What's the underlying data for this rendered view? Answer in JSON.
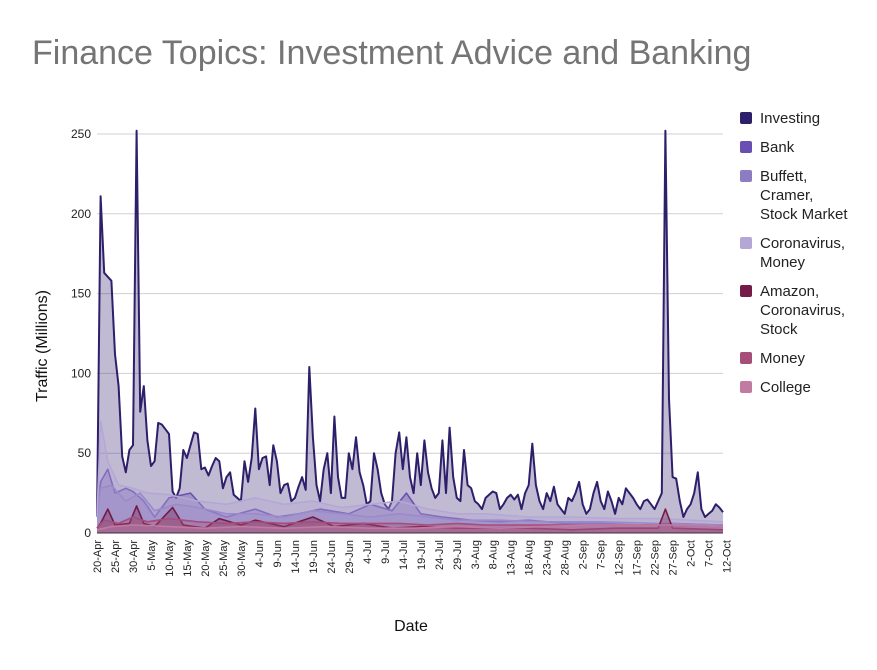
{
  "chart_data": {
    "type": "area",
    "title": "Finance Topics: Investment Advice and Banking",
    "xlabel": "Date",
    "ylabel": "Traffic (Millions)",
    "ylim": [
      0,
      265
    ],
    "yticks": [
      0,
      50,
      100,
      150,
      200,
      250
    ],
    "grid": "horizontal",
    "legend_position": "right",
    "x_tick_labels": [
      "20-Apr",
      "25-Apr",
      "30-Apr",
      "5-May",
      "10-May",
      "15-May",
      "20-May",
      "25-May",
      "30-May",
      "4-Jun",
      "9-Jun",
      "14-Jun",
      "19-Jun",
      "24-Jun",
      "29-Jun",
      "4-Jul",
      "9-Jul",
      "14-Jul",
      "19-Jul",
      "24-Jul",
      "29-Jul",
      "3-Aug",
      "8-Aug",
      "13-Aug",
      "18-Aug",
      "23-Aug",
      "28-Aug",
      "2-Sep",
      "7-Sep",
      "12-Sep",
      "17-Sep",
      "22-Sep",
      "27-Sep",
      "2-Oct",
      "7-Oct",
      "12-Oct"
    ],
    "series": [
      {
        "name": "Investing",
        "color": "#2e1f6b",
        "keypoints": [
          [
            0,
            10
          ],
          [
            1,
            211
          ],
          [
            2,
            163
          ],
          [
            4,
            158
          ],
          [
            5,
            112
          ],
          [
            6,
            92
          ],
          [
            7,
            48
          ],
          [
            8,
            38
          ],
          [
            9,
            52
          ],
          [
            10,
            55
          ],
          [
            11,
            252
          ],
          [
            12,
            76
          ],
          [
            13,
            92
          ],
          [
            14,
            58
          ],
          [
            15,
            42
          ],
          [
            16,
            45
          ],
          [
            17,
            69
          ],
          [
            18,
            68
          ],
          [
            19,
            65
          ],
          [
            20,
            62
          ],
          [
            21,
            26
          ],
          [
            22,
            22
          ],
          [
            23,
            28
          ],
          [
            24,
            52
          ],
          [
            25,
            47
          ],
          [
            26,
            55
          ],
          [
            27,
            63
          ],
          [
            28,
            62
          ],
          [
            29,
            40
          ],
          [
            30,
            41
          ],
          [
            31,
            36
          ],
          [
            32,
            42
          ],
          [
            33,
            47
          ],
          [
            34,
            45
          ],
          [
            35,
            28
          ],
          [
            36,
            35
          ],
          [
            37,
            38
          ],
          [
            38,
            24
          ],
          [
            39,
            22
          ],
          [
            40,
            20
          ],
          [
            41,
            45
          ],
          [
            42,
            32
          ],
          [
            43,
            47
          ],
          [
            44,
            78
          ],
          [
            45,
            40
          ],
          [
            46,
            47
          ],
          [
            47,
            48
          ],
          [
            48,
            30
          ],
          [
            49,
            55
          ],
          [
            50,
            45
          ],
          [
            51,
            25
          ],
          [
            52,
            30
          ],
          [
            53,
            31
          ],
          [
            54,
            20
          ],
          [
            55,
            22
          ],
          [
            56,
            29
          ],
          [
            57,
            35
          ],
          [
            58,
            27
          ],
          [
            59,
            104
          ],
          [
            60,
            60
          ],
          [
            61,
            30
          ],
          [
            62,
            20
          ],
          [
            63,
            40
          ],
          [
            64,
            50
          ],
          [
            65,
            25
          ],
          [
            66,
            73
          ],
          [
            67,
            35
          ],
          [
            68,
            22
          ],
          [
            69,
            22
          ],
          [
            70,
            50
          ],
          [
            71,
            40
          ],
          [
            72,
            60
          ],
          [
            73,
            38
          ],
          [
            74,
            30
          ],
          [
            75,
            18
          ],
          [
            76,
            20
          ],
          [
            77,
            50
          ],
          [
            78,
            40
          ],
          [
            79,
            25
          ],
          [
            80,
            18
          ],
          [
            81,
            15
          ],
          [
            82,
            20
          ],
          [
            83,
            50
          ],
          [
            84,
            63
          ],
          [
            85,
            40
          ],
          [
            86,
            60
          ],
          [
            87,
            35
          ],
          [
            88,
            25
          ],
          [
            89,
            50
          ],
          [
            90,
            30
          ],
          [
            91,
            58
          ],
          [
            92,
            38
          ],
          [
            93,
            28
          ],
          [
            94,
            22
          ],
          [
            95,
            25
          ],
          [
            96,
            58
          ],
          [
            97,
            25
          ],
          [
            98,
            66
          ],
          [
            99,
            35
          ],
          [
            100,
            22
          ],
          [
            101,
            20
          ],
          [
            102,
            52
          ],
          [
            103,
            30
          ],
          [
            104,
            28
          ],
          [
            105,
            20
          ],
          [
            106,
            18
          ],
          [
            107,
            15
          ],
          [
            108,
            22
          ],
          [
            109,
            24
          ],
          [
            110,
            26
          ],
          [
            111,
            25
          ],
          [
            112,
            15
          ],
          [
            113,
            18
          ],
          [
            114,
            22
          ],
          [
            115,
            24
          ],
          [
            116,
            21
          ],
          [
            117,
            24
          ],
          [
            118,
            15
          ],
          [
            119,
            25
          ],
          [
            120,
            30
          ],
          [
            121,
            56
          ],
          [
            122,
            30
          ],
          [
            123,
            20
          ],
          [
            124,
            15
          ],
          [
            125,
            25
          ],
          [
            126,
            20
          ],
          [
            127,
            29
          ],
          [
            128,
            18
          ],
          [
            129,
            15
          ],
          [
            130,
            12
          ],
          [
            131,
            22
          ],
          [
            132,
            20
          ],
          [
            133,
            25
          ],
          [
            134,
            32
          ],
          [
            135,
            18
          ],
          [
            136,
            12
          ],
          [
            137,
            15
          ],
          [
            138,
            25
          ],
          [
            139,
            32
          ],
          [
            140,
            20
          ],
          [
            141,
            15
          ],
          [
            142,
            26
          ],
          [
            143,
            20
          ],
          [
            144,
            12
          ],
          [
            145,
            22
          ],
          [
            146,
            18
          ],
          [
            147,
            28
          ],
          [
            148,
            25
          ],
          [
            149,
            22
          ],
          [
            150,
            18
          ],
          [
            151,
            15
          ],
          [
            152,
            20
          ],
          [
            153,
            21
          ],
          [
            154,
            18
          ],
          [
            155,
            15
          ],
          [
            156,
            20
          ],
          [
            157,
            25
          ],
          [
            158,
            252
          ],
          [
            159,
            84
          ],
          [
            160,
            35
          ],
          [
            161,
            34
          ],
          [
            162,
            20
          ],
          [
            163,
            10
          ],
          [
            164,
            15
          ],
          [
            165,
            18
          ],
          [
            166,
            25
          ],
          [
            167,
            38
          ],
          [
            168,
            15
          ],
          [
            169,
            10
          ],
          [
            170,
            12
          ],
          [
            171,
            14
          ],
          [
            172,
            18
          ],
          [
            173,
            16
          ],
          [
            174,
            13
          ]
        ]
      },
      {
        "name": "Bank",
        "color": "#6a4fb3",
        "keypoints": [
          [
            0,
            10
          ],
          [
            1,
            32
          ],
          [
            3,
            40
          ],
          [
            5,
            25
          ],
          [
            8,
            28
          ],
          [
            10,
            26
          ],
          [
            13,
            20
          ],
          [
            16,
            10
          ],
          [
            20,
            22
          ],
          [
            26,
            25
          ],
          [
            30,
            15
          ],
          [
            36,
            10
          ],
          [
            44,
            15
          ],
          [
            50,
            10
          ],
          [
            56,
            12
          ],
          [
            62,
            15
          ],
          [
            70,
            12
          ],
          [
            76,
            18
          ],
          [
            82,
            14
          ],
          [
            86,
            25
          ],
          [
            90,
            12
          ],
          [
            96,
            10
          ],
          [
            104,
            8
          ],
          [
            112,
            7
          ],
          [
            120,
            8
          ],
          [
            130,
            6
          ],
          [
            140,
            6
          ],
          [
            150,
            5
          ],
          [
            160,
            6
          ],
          [
            174,
            5
          ]
        ]
      },
      {
        "name": "Buffett, Cramer, Stock Market",
        "color": "#8e7cc3",
        "keypoints": [
          [
            0,
            10
          ],
          [
            1,
            28
          ],
          [
            4,
            30
          ],
          [
            8,
            20
          ],
          [
            12,
            25
          ],
          [
            16,
            14
          ],
          [
            22,
            18
          ],
          [
            28,
            16
          ],
          [
            36,
            12
          ],
          [
            44,
            12
          ],
          [
            52,
            10
          ],
          [
            60,
            14
          ],
          [
            68,
            12
          ],
          [
            76,
            10
          ],
          [
            84,
            12
          ],
          [
            92,
            10
          ],
          [
            100,
            8
          ],
          [
            112,
            8
          ],
          [
            124,
            7
          ],
          [
            140,
            7
          ],
          [
            156,
            6
          ],
          [
            174,
            5
          ]
        ]
      },
      {
        "name": "Coronavirus, Money",
        "color": "#b4a7d6",
        "keypoints": [
          [
            0,
            10
          ],
          [
            1,
            70
          ],
          [
            3,
            45
          ],
          [
            6,
            30
          ],
          [
            10,
            28
          ],
          [
            14,
            25
          ],
          [
            20,
            24
          ],
          [
            28,
            20
          ],
          [
            36,
            18
          ],
          [
            44,
            22
          ],
          [
            52,
            18
          ],
          [
            60,
            20
          ],
          [
            68,
            16
          ],
          [
            76,
            18
          ],
          [
            84,
            20
          ],
          [
            92,
            15
          ],
          [
            100,
            12
          ],
          [
            108,
            12
          ],
          [
            120,
            10
          ],
          [
            132,
            10
          ],
          [
            144,
            9
          ],
          [
            156,
            9
          ],
          [
            174,
            7
          ]
        ]
      },
      {
        "name": "Amazon, Coronavirus, Stock",
        "color": "#741b47",
        "keypoints": [
          [
            0,
            3
          ],
          [
            1,
            6
          ],
          [
            3,
            15
          ],
          [
            5,
            5
          ],
          [
            9,
            6
          ],
          [
            11,
            17
          ],
          [
            13,
            6
          ],
          [
            16,
            4
          ],
          [
            21,
            16
          ],
          [
            24,
            5
          ],
          [
            30,
            3
          ],
          [
            34,
            9
          ],
          [
            40,
            5
          ],
          [
            44,
            8
          ],
          [
            52,
            4
          ],
          [
            60,
            10
          ],
          [
            66,
            4
          ],
          [
            74,
            6
          ],
          [
            82,
            3
          ],
          [
            90,
            4
          ],
          [
            100,
            3
          ],
          [
            112,
            3
          ],
          [
            120,
            3
          ],
          [
            132,
            2
          ],
          [
            144,
            3
          ],
          [
            156,
            3
          ],
          [
            158,
            15
          ],
          [
            160,
            3
          ],
          [
            174,
            2
          ]
        ]
      },
      {
        "name": "Money",
        "color": "#a64d79",
        "keypoints": [
          [
            0,
            3
          ],
          [
            2,
            8
          ],
          [
            6,
            6
          ],
          [
            10,
            10
          ],
          [
            14,
            7
          ],
          [
            20,
            9
          ],
          [
            28,
            7
          ],
          [
            36,
            6
          ],
          [
            44,
            7
          ],
          [
            52,
            6
          ],
          [
            60,
            7
          ],
          [
            68,
            6
          ],
          [
            76,
            6
          ],
          [
            84,
            6
          ],
          [
            92,
            5
          ],
          [
            100,
            6
          ],
          [
            108,
            5
          ],
          [
            120,
            5
          ],
          [
            132,
            5
          ],
          [
            144,
            5
          ],
          [
            156,
            5
          ],
          [
            174,
            4
          ]
        ]
      },
      {
        "name": "College",
        "color": "#c27ba0",
        "keypoints": [
          [
            0,
            2
          ],
          [
            4,
            4
          ],
          [
            10,
            5
          ],
          [
            20,
            4
          ],
          [
            30,
            3
          ],
          [
            40,
            4
          ],
          [
            52,
            3
          ],
          [
            64,
            4
          ],
          [
            76,
            3
          ],
          [
            88,
            3
          ],
          [
            100,
            4
          ],
          [
            112,
            3
          ],
          [
            124,
            4
          ],
          [
            136,
            5
          ],
          [
            148,
            5
          ],
          [
            160,
            5
          ],
          [
            174,
            4
          ]
        ]
      }
    ]
  }
}
